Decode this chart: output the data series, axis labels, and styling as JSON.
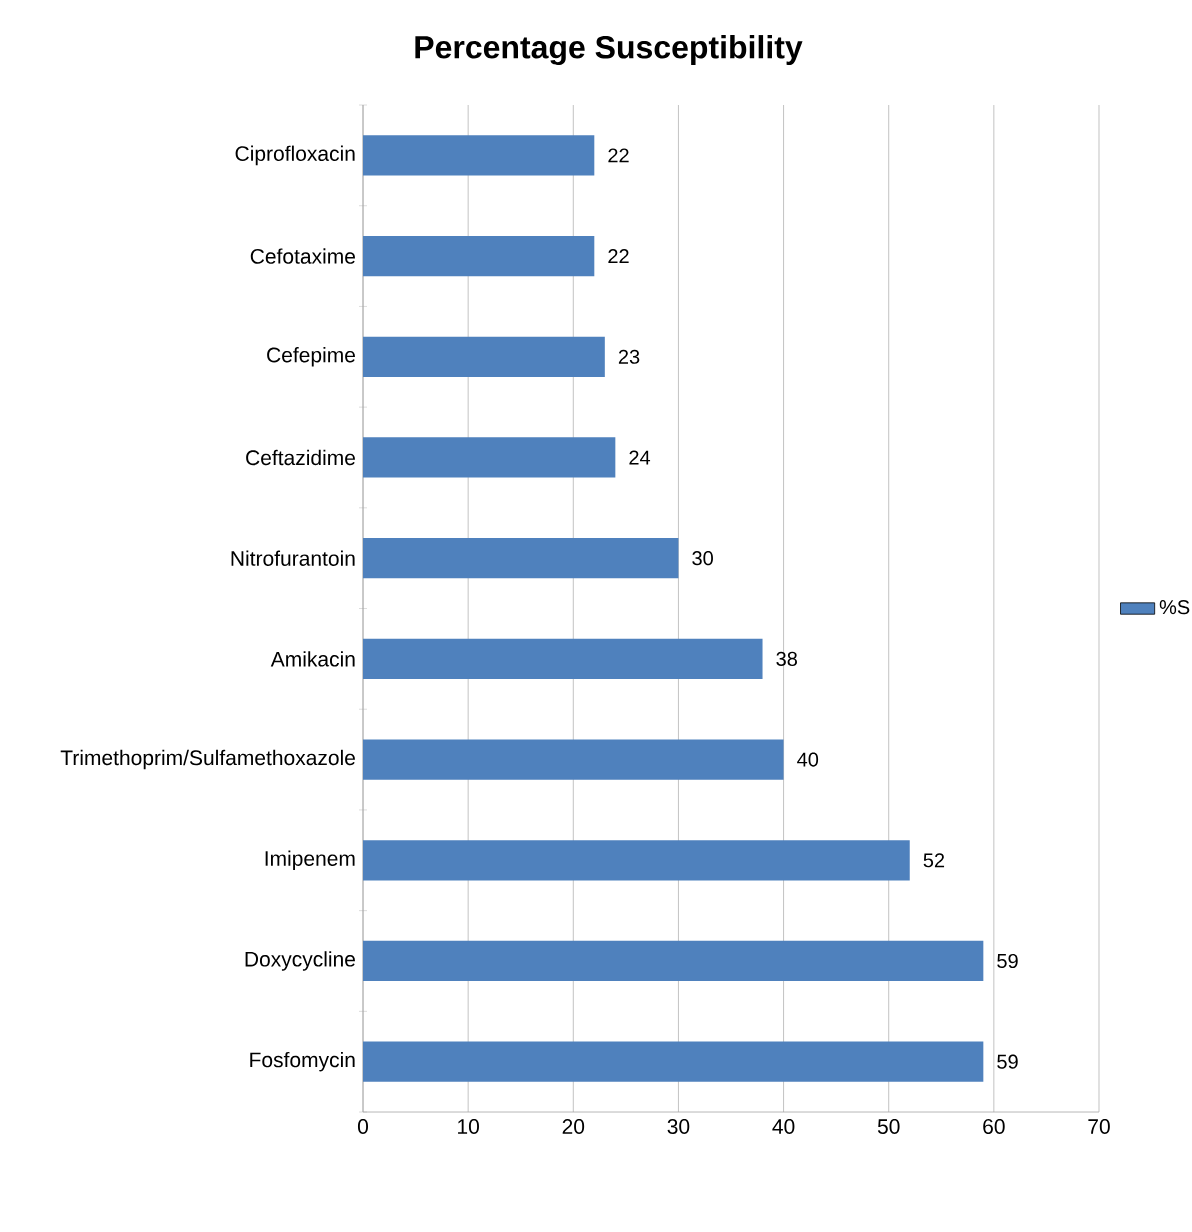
{
  "chart_data": {
    "type": "bar",
    "orientation": "horizontal",
    "title": "Percentage Susceptibility",
    "categories": [
      "Ciprofloxacin",
      "Cefotaxime",
      "Cefepime",
      "Ceftazidime",
      "Nitrofurantoin",
      "Amikacin",
      "Trimethoprim/Sulfamethoxazole",
      "Imipenem",
      "Doxycycline",
      "Fosfomycin"
    ],
    "series": [
      {
        "name": "%S",
        "color": "#4f81bd",
        "values": [
          22,
          22,
          23,
          24,
          30,
          38,
          40,
          52,
          59,
          59
        ]
      }
    ],
    "xlim": [
      0,
      70
    ],
    "xticks": [
      0,
      10,
      20,
      30,
      40,
      50,
      60,
      70
    ],
    "grid": "x",
    "legend": "right",
    "data_labels": true
  }
}
